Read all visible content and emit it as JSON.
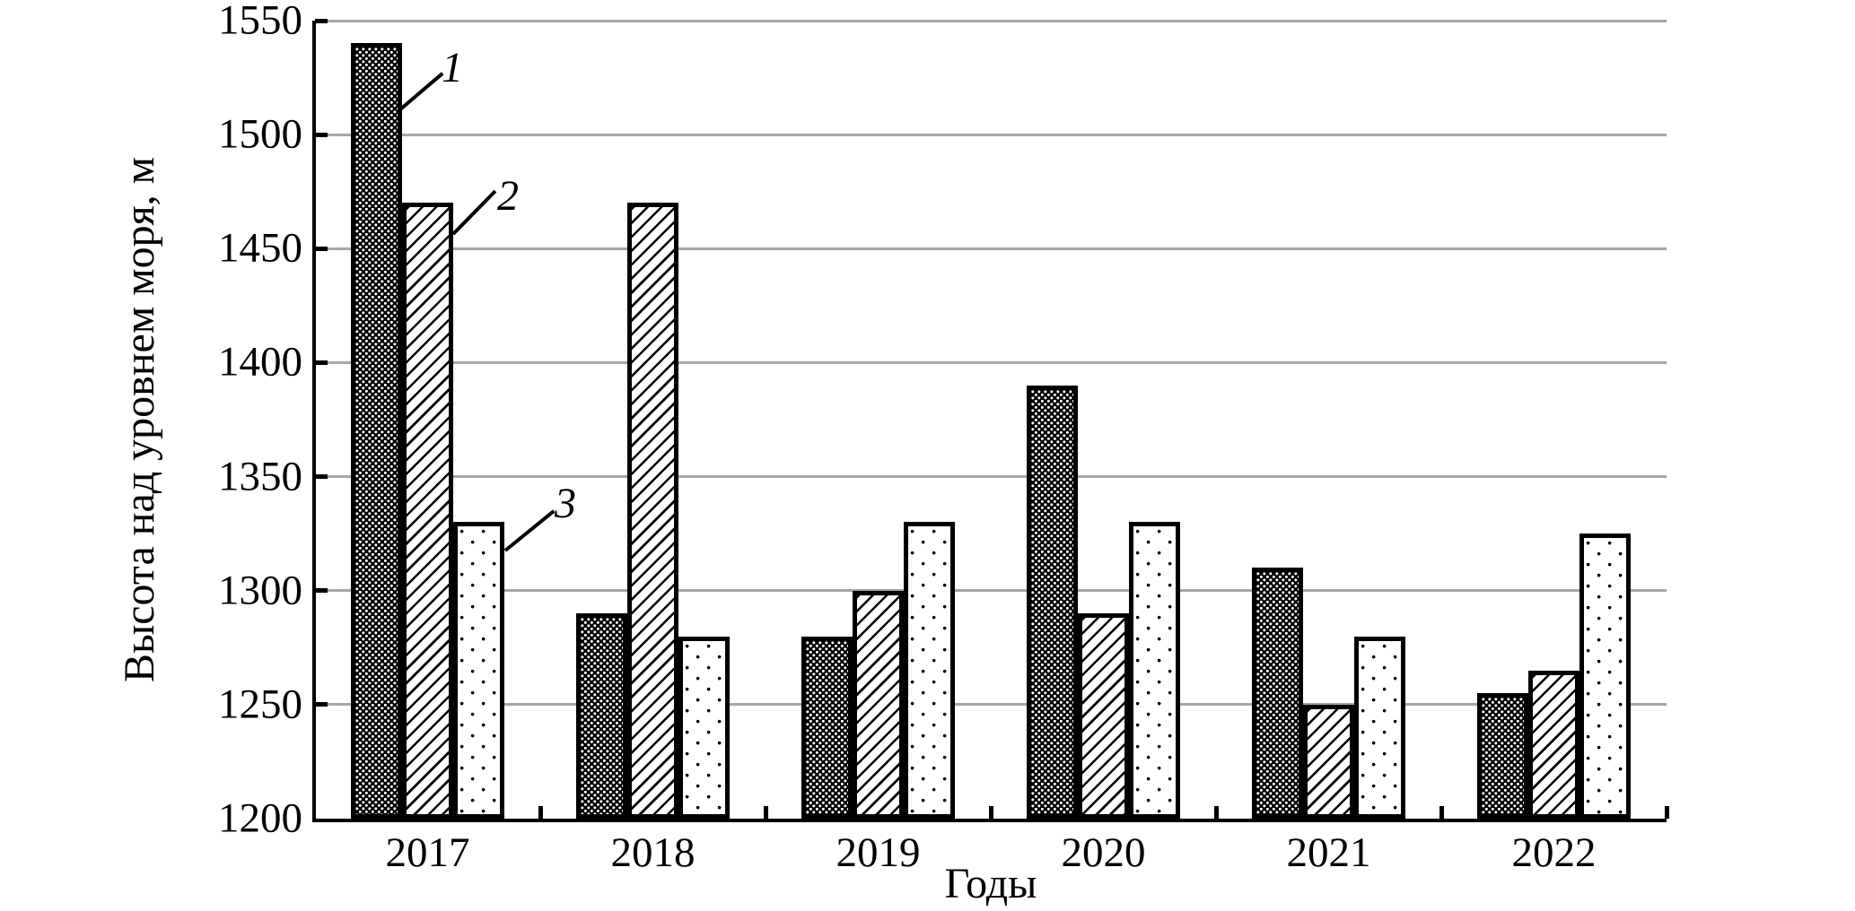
{
  "figure": {
    "background": "#ffffff"
  },
  "chart_data": {
    "type": "bar",
    "title": "",
    "xlabel": "Годы",
    "ylabel": "Высота над уровнем моря, м",
    "categories": [
      "2017",
      "2018",
      "2019",
      "2020",
      "2021",
      "2022"
    ],
    "series": [
      {
        "name": "1",
        "pattern": "dense-white-dots-on-black",
        "values": [
          1540,
          1290,
          1280,
          1390,
          1310,
          1255
        ]
      },
      {
        "name": "2",
        "pattern": "diagonal-hatch",
        "values": [
          1470,
          1470,
          1300,
          1290,
          1250,
          1265
        ]
      },
      {
        "name": "3",
        "pattern": "sparse-black-dots",
        "values": [
          1330,
          1280,
          1330,
          1330,
          1280,
          1325
        ]
      }
    ],
    "ylim": [
      1200,
      1550
    ],
    "ytick_step": 50,
    "yticks": [
      1550,
      1500,
      1450,
      1400,
      1350,
      1300,
      1250,
      1200
    ],
    "grid": "horizontal-gray-lines",
    "legend_position": "inline-leader-annotations",
    "annotations": [
      {
        "label": "1",
        "points_to": "series 1, 2017 bar"
      },
      {
        "label": "2",
        "points_to": "series 2, 2017 bar"
      },
      {
        "label": "3",
        "points_to": "series 3, 2017 bar"
      }
    ],
    "colors": {
      "bar_edge": "#000000",
      "gridline": "#a6a6a6",
      "axis": "#000000",
      "background": "#ffffff"
    }
  }
}
